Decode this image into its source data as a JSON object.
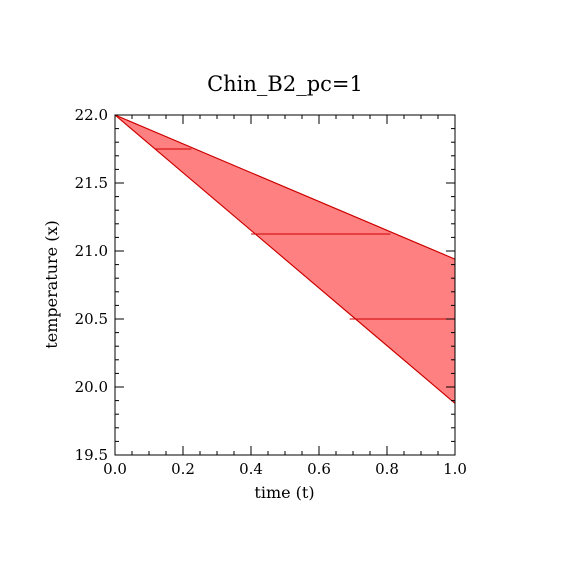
{
  "chart_data": {
    "type": "area",
    "title": "Chin_B2_pc=1",
    "xlabel": "time (t)",
    "ylabel": "temperature (x)",
    "xlim": [
      0.0,
      1.0
    ],
    "ylim": [
      19.5,
      22.0
    ],
    "x_ticks": [
      "0.0",
      "0.2",
      "0.4",
      "0.6",
      "0.8",
      "1.0"
    ],
    "y_ticks": [
      "19.5",
      "20.0",
      "20.5",
      "21.0",
      "21.5",
      "22.0"
    ],
    "grid": false,
    "legend": "none",
    "fill_color": "#ff8080",
    "line_color": "#cc0000",
    "upper_bound": {
      "x": [
        0.0,
        1.0
      ],
      "y": [
        22.0,
        20.94
      ]
    },
    "lower_bound": {
      "x": [
        0.0,
        1.0
      ],
      "y": [
        22.0,
        19.88
      ]
    },
    "segments": [
      {
        "y": 21.75,
        "x_start": 0.12,
        "x_end": 0.225
      },
      {
        "y": 21.125,
        "x_start": 0.4,
        "x_end": 0.81
      },
      {
        "y": 20.5,
        "x_start": 0.69,
        "x_end": 1.0
      }
    ]
  }
}
